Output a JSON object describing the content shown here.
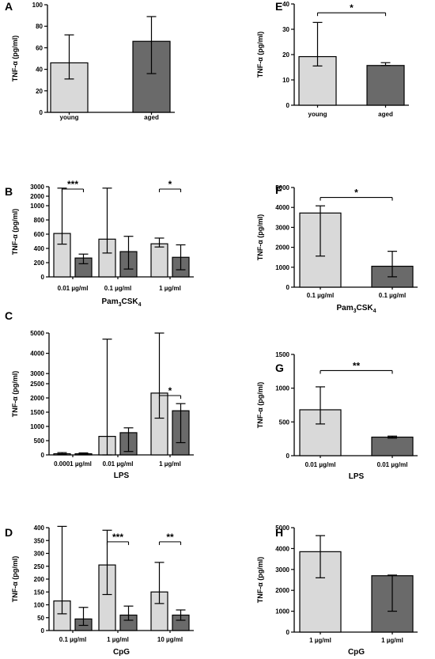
{
  "colors": {
    "young": "#d9d9d9",
    "aged": "#6a6a6a",
    "line": "#000000"
  },
  "chart_data": [
    {
      "panel": "A",
      "type": "bar",
      "ylabel": "TNF-α (pg/ml)",
      "xlabel": "",
      "ylim": [
        0,
        100
      ],
      "yticks": [
        0,
        20,
        40,
        60,
        80,
        100
      ],
      "groups": [
        "young",
        "aged"
      ],
      "bars": [
        {
          "value": 46,
          "err_low": 31,
          "err_high": 72,
          "series": "young"
        },
        {
          "value": 66,
          "err_low": 36,
          "err_high": 89,
          "series": "aged"
        }
      ],
      "significance": []
    },
    {
      "panel": "E",
      "type": "bar",
      "ylabel": "TNF-α (pg/ml)",
      "xlabel": "",
      "ylim": [
        0,
        40
      ],
      "yticks": [
        0,
        10,
        20,
        30,
        40
      ],
      "groups": [
        "young",
        "aged"
      ],
      "bars": [
        {
          "value": 19.2,
          "err_low": 15.5,
          "err_high": 32.7,
          "series": "young"
        },
        {
          "value": 15.7,
          "err_low": 15.7,
          "err_high": 16.8,
          "series": "aged"
        }
      ],
      "significance": [
        {
          "label": "*",
          "from": 0,
          "to": 1,
          "y": 36.5
        }
      ]
    },
    {
      "panel": "B",
      "type": "bar",
      "ylabel": "TNF-α (pg/ml)",
      "xlabel": "Pam3CSK4",
      "xlabel_main": "Pam",
      "xlabel_sub1": "3",
      "xlabel_mid": "CSK",
      "xlabel_sub2": "4",
      "ylim": [
        0,
        1000
      ],
      "break_top": 3000,
      "yticks": [
        0,
        200,
        400,
        600,
        800,
        1000
      ],
      "ytick_labels_break": [
        2000,
        3000
      ],
      "groups": [
        "0.01 µg/ml",
        "0.1 µg/ml",
        "1 µg/ml"
      ],
      "bars": [
        {
          "value": 610,
          "err_low": 460,
          "err_high": 2850,
          "series": "young"
        },
        {
          "value": 265,
          "err_low": 185,
          "err_high": 320,
          "series": "aged"
        },
        {
          "value": 530,
          "err_low": 335,
          "err_high": 2850,
          "series": "young"
        },
        {
          "value": 355,
          "err_low": 110,
          "err_high": 570,
          "series": "aged"
        },
        {
          "value": 465,
          "err_low": 420,
          "err_high": 545,
          "series": "young"
        },
        {
          "value": 275,
          "err_low": 100,
          "err_high": 450,
          "series": "aged"
        }
      ],
      "significance": [
        {
          "label": "***",
          "from": 0,
          "to": 1
        },
        {
          "label": "*",
          "from": 4,
          "to": 5
        }
      ]
    },
    {
      "panel": "F",
      "type": "bar",
      "ylabel": "TNF-α (pg/ml)",
      "xlabel": "Pam3CSK4",
      "xlabel_main": "Pam",
      "xlabel_sub1": "3",
      "xlabel_mid": "CSK",
      "xlabel_sub2": "4",
      "ylim": [
        0,
        5000
      ],
      "yticks": [
        0,
        1000,
        2000,
        3000,
        4000,
        5000
      ],
      "groups": [
        "0.1 µg/ml",
        "0.1 µg/ml"
      ],
      "bars": [
        {
          "value": 3720,
          "err_low": 1560,
          "err_high": 4080,
          "series": "young"
        },
        {
          "value": 1050,
          "err_low": 520,
          "err_high": 1800,
          "series": "aged"
        }
      ],
      "significance": [
        {
          "label": "*",
          "from": 0,
          "to": 1,
          "y": 4500
        }
      ]
    },
    {
      "panel": "C",
      "type": "bar",
      "ylabel": "TNF-α (pg/ml)",
      "xlabel": "LPS",
      "ylim": [
        0,
        2500
      ],
      "break_top": 5000,
      "yticks": [
        0,
        500,
        1000,
        1500,
        2000,
        2500
      ],
      "ytick_labels_break": [
        3000,
        4000,
        5000
      ],
      "groups": [
        "0.0001 µg/ml",
        "0.01 µg/ml",
        "1 µg/ml"
      ],
      "bars": [
        {
          "value": 40,
          "err_low": 15,
          "err_high": 80,
          "series": "young"
        },
        {
          "value": 40,
          "err_low": 15,
          "err_high": 70,
          "series": "aged"
        },
        {
          "value": 650,
          "err_low": 0,
          "err_high": 4700,
          "series": "young"
        },
        {
          "value": 780,
          "err_low": 120,
          "err_high": 950,
          "series": "aged"
        },
        {
          "value": 2170,
          "err_low": 1290,
          "err_high": 5000,
          "series": "young"
        },
        {
          "value": 1550,
          "err_low": 430,
          "err_high": 1800,
          "series": "aged"
        }
      ],
      "significance": [
        {
          "label": "*",
          "from": 4,
          "to": 5
        }
      ]
    },
    {
      "panel": "G",
      "type": "bar",
      "ylabel": "TNF-α (pg/ml)",
      "xlabel": "LPS",
      "ylim": [
        0,
        1500
      ],
      "yticks": [
        0,
        500,
        1000,
        1500
      ],
      "groups": [
        "0.01 µg/ml",
        "0.01 µg/ml"
      ],
      "bars": [
        {
          "value": 680,
          "err_low": 470,
          "err_high": 1020,
          "series": "young"
        },
        {
          "value": 275,
          "err_low": 260,
          "err_high": 290,
          "series": "aged"
        }
      ],
      "significance": [
        {
          "label": "**",
          "from": 0,
          "to": 1,
          "y": 1260
        }
      ]
    },
    {
      "panel": "D",
      "type": "bar",
      "ylabel": "TNF-α (pg/ml)",
      "xlabel": "CpG",
      "ylim": [
        0,
        400
      ],
      "yticks": [
        0,
        50,
        100,
        150,
        200,
        250,
        300,
        350,
        400
      ],
      "groups": [
        "0.1 µg/ml",
        "1 µg/ml",
        "10 µg/ml"
      ],
      "bars": [
        {
          "value": 115,
          "err_low": 65,
          "err_high": 405,
          "series": "young"
        },
        {
          "value": 45,
          "err_low": 20,
          "err_high": 90,
          "series": "aged"
        },
        {
          "value": 255,
          "err_low": 140,
          "err_high": 390,
          "series": "young"
        },
        {
          "value": 60,
          "err_low": 40,
          "err_high": 95,
          "series": "aged"
        },
        {
          "value": 150,
          "err_low": 105,
          "err_high": 265,
          "series": "young"
        },
        {
          "value": 60,
          "err_low": 40,
          "err_high": 80,
          "series": "aged"
        }
      ],
      "significance": [
        {
          "label": "***",
          "from": 2,
          "to": 3,
          "y": 345
        },
        {
          "label": "**",
          "from": 4,
          "to": 5,
          "y": 345
        }
      ]
    },
    {
      "panel": "H",
      "type": "bar",
      "ylabel": "TNF-α (pg/ml)",
      "xlabel": "CpG",
      "ylim": [
        0,
        5000
      ],
      "yticks": [
        0,
        1000,
        2000,
        3000,
        4000,
        5000
      ],
      "groups": [
        "1 µg/ml",
        "1 µg/ml"
      ],
      "bars": [
        {
          "value": 3850,
          "err_low": 2600,
          "err_high": 4620,
          "series": "young"
        },
        {
          "value": 2700,
          "err_low": 1000,
          "err_high": 2730,
          "series": "aged"
        }
      ],
      "significance": []
    }
  ]
}
